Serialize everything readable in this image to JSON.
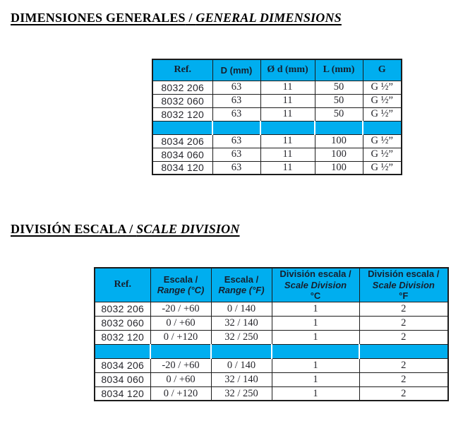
{
  "colors": {
    "accent": "#00AEEF",
    "border": "#1c1c1c",
    "header_text": "#16202e",
    "body_text": "#26262c",
    "title_text": "#000000",
    "page_bg": "#ffffff"
  },
  "section_general_dimensions": {
    "title_es": "DIMENSIONES GENERALES",
    "title_sep": " / ",
    "title_en": "GENERAL DIMENSIONS",
    "table": {
      "headers": [
        [
          "Ref."
        ],
        [
          "D (mm)"
        ],
        [
          "Ø d (mm)"
        ],
        [
          "L (mm)"
        ],
        [
          "G"
        ]
      ],
      "row_groups": [
        [
          [
            "8032 206",
            "63",
            "11",
            "50",
            "G ½”"
          ],
          [
            "8032 060",
            "63",
            "11",
            "50",
            "G ½”"
          ],
          [
            "8032 120",
            "63",
            "11",
            "50",
            "G ½”"
          ]
        ],
        [
          [
            "8034 206",
            "63",
            "11",
            "100",
            "G ½”"
          ],
          [
            "8034 060",
            "63",
            "11",
            "100",
            "G ½”"
          ],
          [
            "8034 120",
            "63",
            "11",
            "100",
            "G ½”"
          ]
        ]
      ]
    }
  },
  "section_scale_division": {
    "title_es": "DIVISIÓN ESCALA",
    "title_sep": " / ",
    "title_en": "SCALE DIVISION",
    "table": {
      "headers": [
        [
          "Ref."
        ],
        [
          "Escala /",
          "Range (°C)"
        ],
        [
          "Escala /",
          "Range (°F)"
        ],
        [
          "División escala /",
          "Scale Division",
          "°C"
        ],
        [
          "División escala /",
          "Scale Division",
          "°F"
        ]
      ],
      "row_groups": [
        [
          [
            "8032 206",
            "-20 / +60",
            "0 / 140",
            "1",
            "2"
          ],
          [
            "8032 060",
            "0 / +60",
            "32 / 140",
            "1",
            "2"
          ],
          [
            "8032 120",
            "0 / +120",
            "32 / 250",
            "1",
            "2"
          ]
        ],
        [
          [
            "8034 206",
            "-20 / +60",
            "0 / 140",
            "1",
            "2"
          ],
          [
            "8034 060",
            "0 / +60",
            "32 / 140",
            "1",
            "2"
          ],
          [
            "8034 120",
            "0 / +120",
            "32 / 250",
            "1",
            "2"
          ]
        ]
      ]
    }
  }
}
